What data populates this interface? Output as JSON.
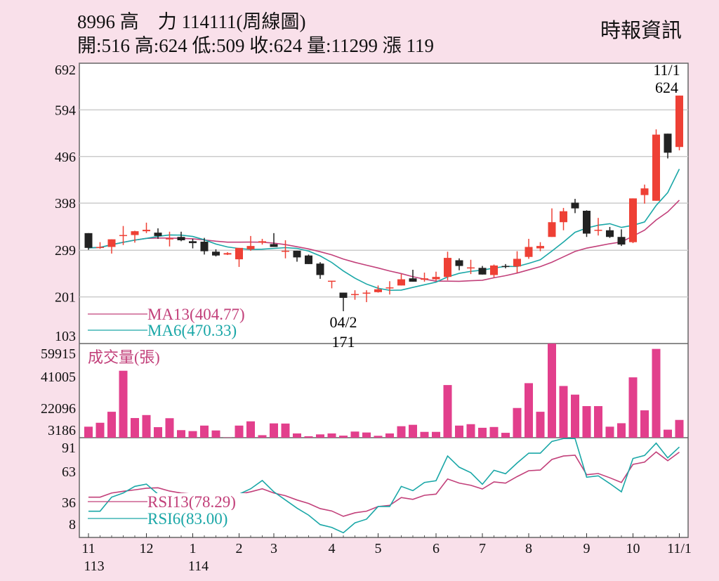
{
  "header": {
    "title": "8996  高　力 114111(周線圖)",
    "quote": "開:516 高:624 低:509 收:624 量:11299 漲 119",
    "source": "時報資訊"
  },
  "chart_data": {
    "type": "candlestick",
    "period": "weekly",
    "price_axis": {
      "ticks": [
        692,
        594,
        496,
        398,
        299,
        201,
        103
      ],
      "range": [
        103,
        692
      ]
    },
    "volume_axis": {
      "title": "成交量(張)",
      "ticks": [
        59915,
        41005,
        22096,
        3186
      ],
      "range": [
        0,
        59915
      ]
    },
    "rsi_axis": {
      "ticks": [
        91,
        63,
        36,
        8
      ],
      "range": [
        0,
        100
      ]
    },
    "x_ticks": [
      {
        "label": "11",
        "sub": "113",
        "week": 0
      },
      {
        "label": "12",
        "week": 5
      },
      {
        "label": "1",
        "sub": "114",
        "week": 9
      },
      {
        "label": "2",
        "week": 13
      },
      {
        "label": "3",
        "week": 16
      },
      {
        "label": "4",
        "week": 21
      },
      {
        "label": "5",
        "week": 25
      },
      {
        "label": "6",
        "week": 30
      },
      {
        "label": "7",
        "week": 34
      },
      {
        "label": "8",
        "week": 38
      },
      {
        "label": "9",
        "week": 43
      },
      {
        "label": "10",
        "week": 47
      },
      {
        "label": "11/1",
        "week": 51
      }
    ],
    "ohlc": [
      [
        335,
        335,
        300,
        304
      ],
      [
        306,
        316,
        302,
        306
      ],
      [
        306,
        322,
        292,
        322
      ],
      [
        331,
        350,
        310,
        331
      ],
      [
        331,
        340,
        315,
        339
      ],
      [
        339,
        357,
        335,
        342
      ],
      [
        336,
        345,
        323,
        329
      ],
      [
        324,
        338,
        307,
        324
      ],
      [
        327,
        338,
        318,
        320
      ],
      [
        318,
        323,
        303,
        314
      ],
      [
        317,
        325,
        290,
        297
      ],
      [
        296,
        301,
        286,
        288
      ],
      [
        290,
        295,
        289,
        293
      ],
      [
        280,
        304,
        264,
        304
      ],
      [
        301,
        329,
        298,
        308
      ],
      [
        315,
        323,
        311,
        318
      ],
      [
        312,
        335,
        306,
        306
      ],
      [
        298,
        320,
        282,
        298
      ],
      [
        298,
        298,
        275,
        284
      ],
      [
        288,
        290,
        270,
        270
      ],
      [
        271,
        274,
        239,
        247
      ],
      [
        234,
        235,
        219,
        235
      ],
      [
        210,
        210,
        171,
        199
      ],
      [
        206,
        215,
        195,
        207
      ],
      [
        209,
        215,
        190,
        210
      ],
      [
        211,
        225,
        210,
        217
      ],
      [
        221,
        234,
        206,
        221
      ],
      [
        225,
        249,
        225,
        238
      ],
      [
        240,
        258,
        233,
        233
      ],
      [
        237,
        252,
        233,
        240
      ],
      [
        238,
        254,
        235,
        243
      ],
      [
        243,
        296,
        236,
        283
      ],
      [
        278,
        282,
        257,
        266
      ],
      [
        262,
        279,
        249,
        263
      ],
      [
        262,
        266,
        248,
        248
      ],
      [
        247,
        269,
        242,
        267
      ],
      [
        266,
        270,
        261,
        264
      ],
      [
        265,
        297,
        252,
        281
      ],
      [
        285,
        323,
        281,
        306
      ],
      [
        303,
        316,
        297,
        308
      ],
      [
        327,
        387,
        327,
        358
      ],
      [
        358,
        388,
        341,
        381
      ],
      [
        399,
        407,
        377,
        387
      ],
      [
        382,
        383,
        327,
        334
      ],
      [
        342,
        367,
        330,
        342
      ],
      [
        341,
        348,
        325,
        327
      ],
      [
        327,
        343,
        308,
        311
      ],
      [
        316,
        408,
        314,
        408
      ],
      [
        415,
        437,
        397,
        429
      ],
      [
        403,
        553,
        403,
        542
      ],
      [
        544,
        544,
        492,
        504
      ],
      [
        516,
        624,
        509,
        624
      ]
    ],
    "annotations": [
      {
        "label": "04/2",
        "value": "171",
        "week": 22
      },
      {
        "label": "11/1",
        "value": "624",
        "week": 51
      }
    ],
    "ma": [
      {
        "name": "MA13(404.77)",
        "period": 13,
        "last": 404.77,
        "color": "#c2407a"
      },
      {
        "name": "MA6(470.33)",
        "period": 6,
        "last": 470.33,
        "color": "#1aa7a7"
      }
    ],
    "volume": [
      7000,
      9500,
      16500,
      42600,
      12500,
      14400,
      6700,
      12400,
      4800,
      4200,
      7700,
      4600,
      200,
      7700,
      10400,
      1600,
      9100,
      9000,
      2700,
      900,
      2100,
      2700,
      1300,
      3900,
      3300,
      1200,
      2700,
      7300,
      8200,
      3700,
      3700,
      33500,
      7700,
      8600,
      6300,
      6800,
      3100,
      18900,
      34700,
      16500,
      59915,
      32900,
      27400,
      20100,
      20100,
      7000,
      9200,
      38400,
      17400,
      56500,
      5100,
      11299
    ],
    "rsi": [
      {
        "name": "RSI13(78.29)",
        "color": "#c2407a",
        "values": [
          37,
          37,
          40.8,
          42.4,
          43.7,
          45.2,
          45.6,
          42.6,
          40.8,
          39.8,
          38.7,
          37.5,
          36.5,
          39.8,
          41.9,
          44.7,
          40.8,
          38.3,
          34.4,
          31.2,
          26.5,
          24.3,
          19.4,
          22.6,
          24.1,
          28.4,
          29.5,
          36.6,
          35,
          38.7,
          39.8,
          53.7,
          49.9,
          47.9,
          44.5,
          51,
          49.9,
          55.9,
          61.3,
          61.9,
          71.6,
          74.8,
          75.5,
          57.6,
          58.7,
          54.8,
          50.5,
          67.1,
          69.2,
          78.5,
          70.5,
          78.29
        ]
      },
      {
        "name": "RSI6(83.00)",
        "color": "#1aa7a7",
        "values": [
          24.1,
          24.1,
          37,
          40.8,
          46.9,
          49,
          39.8,
          38.7,
          38,
          37,
          36,
          37,
          38,
          39.8,
          44.7,
          52.3,
          41.9,
          34.4,
          26.9,
          20.5,
          11.8,
          9.2,
          4.3,
          13.4,
          16.8,
          28.4,
          28.4,
          46.9,
          43,
          50.5,
          52.1,
          74.8,
          64.5,
          59.5,
          48.8,
          61.7,
          58.5,
          68.4,
          77.4,
          77.4,
          88.2,
          90.8,
          90.8,
          55.3,
          56.6,
          49.5,
          41.9,
          72.5,
          75.3,
          86.6,
          73.1,
          83
        ]
      }
    ],
    "colors": {
      "up": "#ee4035",
      "down": "#222222",
      "volume": "#e23f8c",
      "background": "#f9e0ea",
      "grid": "#cccccc"
    }
  }
}
